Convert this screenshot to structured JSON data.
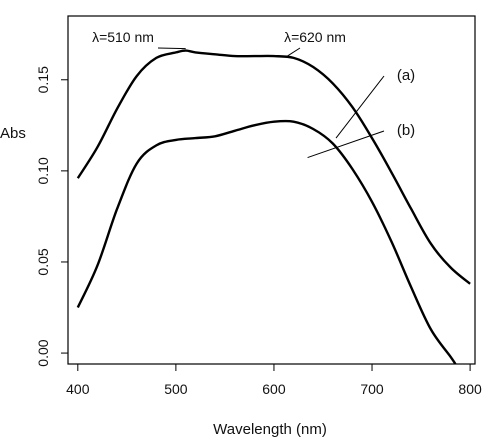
{
  "chart_data": {
    "type": "line",
    "title": "",
    "xlabel": "Wavelength (nm)",
    "ylabel": "Abs",
    "xlim": [
      390,
      805
    ],
    "ylim": [
      -0.006,
      0.185
    ],
    "x_ticks": [
      400,
      500,
      600,
      700,
      800
    ],
    "x_tick_labels": [
      "400",
      "500",
      "600",
      "700",
      "800"
    ],
    "y_ticks": [
      0.0,
      0.05,
      0.1,
      0.15
    ],
    "y_tick_labels": [
      "0.00",
      "0.05",
      "0.10",
      "0.15"
    ],
    "grid": false,
    "series": [
      {
        "name": "(a)",
        "x": [
          400,
          420,
          440,
          460,
          480,
          500,
          510,
          520,
          540,
          560,
          580,
          600,
          620,
          640,
          660,
          680,
          700,
          720,
          740,
          760,
          780,
          800
        ],
        "y": [
          0.096,
          0.113,
          0.134,
          0.152,
          0.162,
          0.165,
          0.166,
          0.165,
          0.164,
          0.163,
          0.163,
          0.163,
          0.162,
          0.157,
          0.148,
          0.135,
          0.118,
          0.099,
          0.079,
          0.06,
          0.047,
          0.038
        ]
      },
      {
        "name": "(b)",
        "x": [
          400,
          420,
          440,
          460,
          480,
          500,
          520,
          540,
          560,
          580,
          600,
          620,
          640,
          660,
          680,
          700,
          720,
          740,
          760,
          780,
          785
        ],
        "y": [
          0.025,
          0.048,
          0.079,
          0.104,
          0.114,
          0.117,
          0.118,
          0.119,
          0.122,
          0.125,
          0.127,
          0.127,
          0.123,
          0.115,
          0.101,
          0.083,
          0.061,
          0.036,
          0.013,
          -0.002,
          -0.006
        ]
      }
    ],
    "annotations": [
      {
        "text": "λ=510 nm",
        "x": 510,
        "y": 0.166
      },
      {
        "text": "λ=620 nm",
        "x": 620,
        "y": 0.162
      }
    ]
  }
}
